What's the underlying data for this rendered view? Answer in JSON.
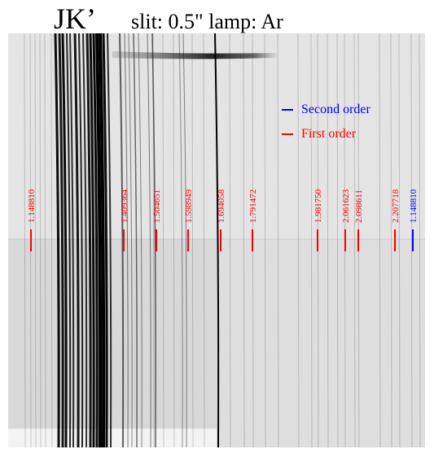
{
  "title": {
    "band": "JK’",
    "details": "slit: 0.5\"  lamp: Ar"
  },
  "legend": [
    {
      "label": "Second order",
      "color": "#0000ff"
    },
    {
      "label": "First order",
      "color": "#ff0000"
    }
  ],
  "line_ids": [
    {
      "wavelength": "1.148810",
      "order": "first"
    },
    {
      "wavelength": "1.409364",
      "order": "first"
    },
    {
      "wavelength": "1.504651",
      "order": "first"
    },
    {
      "wavelength": "1.598949",
      "order": "first"
    },
    {
      "wavelength": "1.694058",
      "order": "first"
    },
    {
      "wavelength": "1.791472",
      "order": "first"
    },
    {
      "wavelength": "1.981750",
      "order": "first"
    },
    {
      "wavelength": "2.061623",
      "order": "first"
    },
    {
      "wavelength": "2.098611",
      "order": "first"
    },
    {
      "wavelength": "2.207718",
      "order": "first"
    },
    {
      "wavelength": "1.148810",
      "order": "second"
    }
  ],
  "colors": {
    "first_order": "#ff0000",
    "second_order": "#0000ff",
    "background": "#e6e6e6",
    "emission_line": "#000000"
  }
}
